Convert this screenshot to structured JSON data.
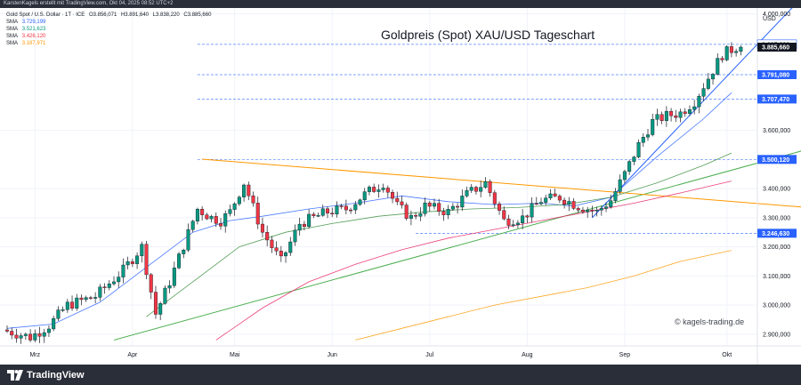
{
  "header": {
    "credit": "KarstenKagels erstellt mit TradingView.com, Okt 04, 2025 08:52 UTC+2"
  },
  "legend": {
    "symbol": "Gold Spot / U.S. Dollar · 1T · ICE",
    "ohlc": {
      "o": "O3.856,071",
      "h": "H3.891,640",
      "l": "L3.838,220",
      "c": "C3.885,660"
    },
    "sma": [
      {
        "label": "SMA",
        "value": "3.729,199",
        "color": "#2962ff"
      },
      {
        "label": "SMA",
        "value": "3.521,623",
        "color": "#089981"
      },
      {
        "label": "SMA",
        "value": "3.426,120",
        "color": "#f23645"
      },
      {
        "label": "SMA",
        "value": "3.187,971",
        "color": "#ff9800"
      }
    ]
  },
  "title": "Goldpreis (Spot) XAU/USD Tageschart",
  "watermark": "© kagels-trading.de",
  "brand": {
    "name": "TradingView"
  },
  "colors": {
    "up": "#089981",
    "down": "#f23645",
    "wick": "#131722",
    "grid": "#f0f3fa",
    "sma_fast": "#2962ff",
    "sma_mid": "#388e3c",
    "sma_slow": "#e91e63",
    "sma_long": "#ff9800",
    "trend_green": "#4caf50",
    "trend_orange": "#ff9800",
    "trend_blue": "#2962ff",
    "hline": "#2962ff",
    "label_blue": "#2962ff",
    "label_black": "#131722"
  },
  "chart_data": {
    "type": "candlestick",
    "title": "Goldpreis (Spot) XAU/USD Tageschart",
    "currency": "USD",
    "y_range": [
      2860,
      4020
    ],
    "y_ticks": [
      {
        "value": 4000,
        "label": "4.000,000"
      },
      {
        "value": 3600,
        "label": "3.600,000"
      },
      {
        "value": 3400,
        "label": "3.400,000"
      },
      {
        "value": 3300,
        "label": "3.300,000"
      },
      {
        "value": 3200,
        "label": "3.200,000"
      },
      {
        "value": 3100,
        "label": "3.100,000"
      },
      {
        "value": 3000,
        "label": "3.000,000"
      },
      {
        "value": 2900,
        "label": "2.900,000"
      }
    ],
    "x_range": [
      0,
      161
    ],
    "months": [
      {
        "label": "Mrz",
        "index": 6
      },
      {
        "label": "Apr",
        "index": 27
      },
      {
        "label": "Mai",
        "index": 49
      },
      {
        "label": "Jun",
        "index": 70
      },
      {
        "label": "Jul",
        "index": 91
      },
      {
        "label": "Aug",
        "index": 112
      },
      {
        "label": "Sep",
        "index": 133
      },
      {
        "label": "Okt",
        "index": 155
      }
    ],
    "price_levels": [
      {
        "value": 3895.33,
        "label": "3.895,330",
        "style": "plain"
      },
      {
        "value": 3885.66,
        "label": "3.885,660",
        "style": "current"
      },
      {
        "value": 3791.08,
        "label": "3.791,080",
        "style": "box"
      },
      {
        "value": 3707.47,
        "label": "3.707,470",
        "style": "box"
      },
      {
        "value": 3500.12,
        "label": "3.500,120",
        "style": "box"
      },
      {
        "value": 3246.63,
        "label": "3.246,630",
        "style": "box"
      }
    ],
    "trendlines": [
      {
        "name": "green-trend",
        "x": [
          23,
          174
        ],
        "y": [
          2880,
          3542
        ]
      },
      {
        "name": "orange-trend",
        "x": [
          42,
          174
        ],
        "y": [
          3501,
          3333
        ]
      },
      {
        "name": "blue-trend",
        "x": [
          126,
          172
        ],
        "y": [
          3300,
          4070
        ]
      }
    ],
    "sma_series": [
      {
        "name": "SMA 3.729,199",
        "role": "sma_fast",
        "points": [
          [
            0,
            2920
          ],
          [
            10,
            2935
          ],
          [
            20,
            3010
          ],
          [
            30,
            3130
          ],
          [
            40,
            3250
          ],
          [
            48,
            3290
          ],
          [
            55,
            3305
          ],
          [
            65,
            3330
          ],
          [
            75,
            3350
          ],
          [
            85,
            3375
          ],
          [
            95,
            3355
          ],
          [
            105,
            3345
          ],
          [
            115,
            3350
          ],
          [
            122,
            3340
          ],
          [
            130,
            3370
          ],
          [
            140,
            3510
          ],
          [
            150,
            3640
          ],
          [
            156,
            3729
          ]
        ]
      },
      {
        "name": "SMA 3.521,623",
        "role": "sma_mid",
        "points": [
          [
            30,
            2960
          ],
          [
            40,
            3080
          ],
          [
            50,
            3200
          ],
          [
            60,
            3250
          ],
          [
            70,
            3280
          ],
          [
            80,
            3305
          ],
          [
            90,
            3320
          ],
          [
            100,
            3330
          ],
          [
            110,
            3335
          ],
          [
            120,
            3345
          ],
          [
            130,
            3370
          ],
          [
            140,
            3420
          ],
          [
            150,
            3480
          ],
          [
            156,
            3522
          ]
        ]
      },
      {
        "name": "SMA 3.426,120",
        "role": "sma_slow",
        "points": [
          [
            45,
            2880
          ],
          [
            55,
            2990
          ],
          [
            65,
            3080
          ],
          [
            75,
            3140
          ],
          [
            85,
            3190
          ],
          [
            95,
            3230
          ],
          [
            105,
            3260
          ],
          [
            115,
            3290
          ],
          [
            125,
            3320
          ],
          [
            135,
            3350
          ],
          [
            145,
            3385
          ],
          [
            156,
            3426
          ]
        ]
      },
      {
        "name": "SMA 3.187,971",
        "role": "sma_long",
        "points": [
          [
            75,
            2880
          ],
          [
            85,
            2920
          ],
          [
            95,
            2960
          ],
          [
            105,
            3000
          ],
          [
            115,
            3030
          ],
          [
            125,
            3060
          ],
          [
            135,
            3100
          ],
          [
            145,
            3150
          ],
          [
            156,
            3188
          ]
        ]
      }
    ]
  }
}
